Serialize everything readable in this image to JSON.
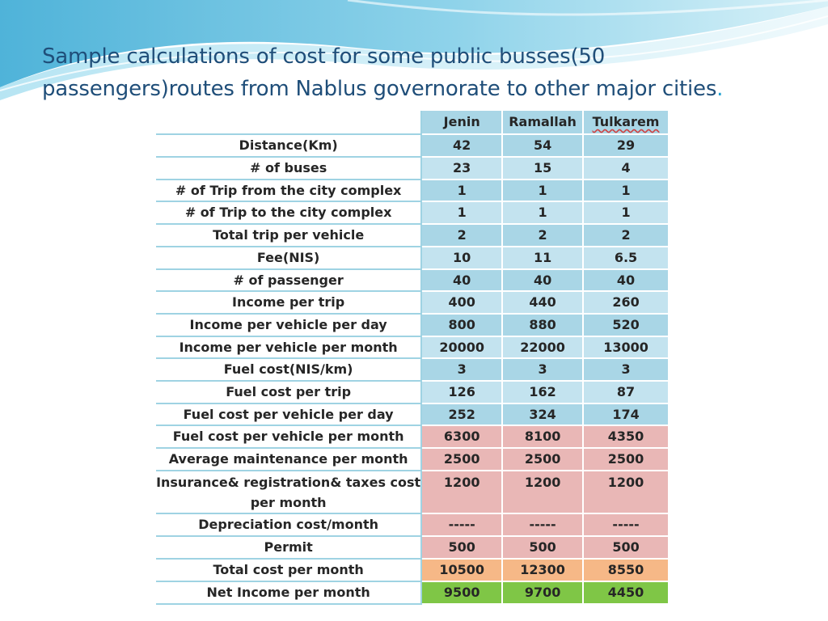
{
  "slide": {
    "title": "Sample calculations of cost for some public busses(50 passengers)routes from Nablus governorate to other major cities",
    "title_end": "."
  },
  "table": {
    "columns": [
      "",
      "Jenin",
      "Ramallah",
      "Tulkarem"
    ],
    "rows": [
      {
        "label": "Distance(Km)",
        "values": [
          "42",
          "54",
          "29"
        ]
      },
      {
        "label": "# of buses",
        "values": [
          "23",
          "15",
          "4"
        ]
      },
      {
        "label": "# of Trip from the city complex",
        "values": [
          "1",
          "1",
          "1"
        ]
      },
      {
        "label": "# of Trip to the city complex",
        "values": [
          "1",
          "1",
          "1"
        ]
      },
      {
        "label": "Total trip per vehicle",
        "values": [
          "2",
          "2",
          "2"
        ]
      },
      {
        "label": "Fee(NIS)",
        "values": [
          "10",
          "11",
          "6.5"
        ]
      },
      {
        "label": "# of passenger",
        "values": [
          "40",
          "40",
          "40"
        ]
      },
      {
        "label": "Income per trip",
        "values": [
          "400",
          "440",
          "260"
        ]
      },
      {
        "label": "Income per vehicle per day",
        "values": [
          "800",
          "880",
          "520"
        ]
      },
      {
        "label": "Income per vehicle per month",
        "values": [
          "20000",
          "22000",
          "13000"
        ]
      },
      {
        "label": "Fuel cost(NIS/km)",
        "values": [
          "3",
          "3",
          "3"
        ]
      },
      {
        "label": "Fuel cost per trip",
        "values": [
          "126",
          "162",
          "87"
        ]
      },
      {
        "label": "Fuel cost per vehicle per day",
        "values": [
          "252",
          "324",
          "174"
        ]
      },
      {
        "label": "Fuel cost per vehicle per month",
        "values": [
          "6300",
          "8100",
          "4350"
        ]
      },
      {
        "label": "Average maintenance per month",
        "values": [
          "2500",
          "2500",
          "2500"
        ]
      },
      {
        "label": "Insurance& registration& taxes cost per month",
        "values": [
          "1200",
          "1200",
          "1200"
        ]
      },
      {
        "label": "Depreciation cost/month",
        "values": [
          "-----",
          "-----",
          "-----"
        ]
      },
      {
        "label": "Permit",
        "values": [
          "500",
          "500",
          "500"
        ]
      },
      {
        "label": "Total cost per month",
        "values": [
          "10500",
          "12300",
          "8550"
        ]
      },
      {
        "label": "Net Income per month",
        "values": [
          "9500",
          "9700",
          "4450"
        ]
      }
    ]
  },
  "colors": {
    "title": "#1f4e79",
    "income_cells": "#a9d6e6",
    "cost_cells": "#e9b7b6",
    "total_cost_cells": "#f6b887",
    "net_income_cells": "#7fc646"
  }
}
